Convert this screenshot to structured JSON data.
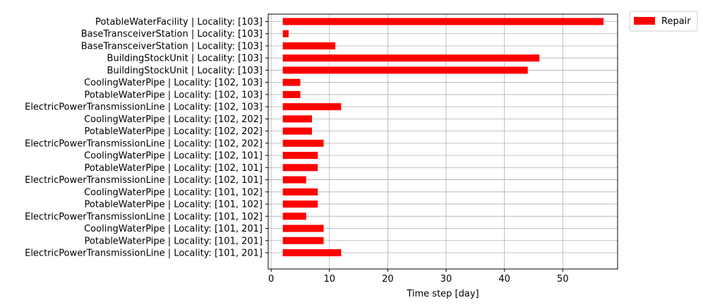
{
  "chart_data": {
    "type": "bar",
    "orientation": "horizontal-gantt",
    "xlabel": "Time step [day]",
    "ylabel": "",
    "xlim": [
      -0.5,
      59.4
    ],
    "xticks": [
      0,
      10,
      20,
      30,
      40,
      50
    ],
    "grid": true,
    "legend_position": "top-right-outside",
    "series": [
      {
        "name": "Repair",
        "color": "#ff0000",
        "bars": [
          {
            "label": "ElectricPowerTransmissionLine | Locality: [101, 201]",
            "start": 2,
            "end": 12
          },
          {
            "label": "PotableWaterPipe | Locality: [101, 201]",
            "start": 2,
            "end": 9
          },
          {
            "label": "CoolingWaterPipe | Locality: [101, 201]",
            "start": 2,
            "end": 9
          },
          {
            "label": "ElectricPowerTransmissionLine | Locality: [101, 102]",
            "start": 2,
            "end": 6
          },
          {
            "label": "PotableWaterPipe | Locality: [101, 102]",
            "start": 2,
            "end": 8
          },
          {
            "label": "CoolingWaterPipe | Locality: [101, 102]",
            "start": 2,
            "end": 8
          },
          {
            "label": "ElectricPowerTransmissionLine | Locality: [102, 101]",
            "start": 2,
            "end": 6
          },
          {
            "label": "PotableWaterPipe | Locality: [102, 101]",
            "start": 2,
            "end": 8
          },
          {
            "label": "CoolingWaterPipe | Locality: [102, 101]",
            "start": 2,
            "end": 8
          },
          {
            "label": "ElectricPowerTransmissionLine | Locality: [102, 202]",
            "start": 2,
            "end": 9
          },
          {
            "label": "PotableWaterPipe | Locality: [102, 202]",
            "start": 2,
            "end": 7
          },
          {
            "label": "CoolingWaterPipe | Locality: [102, 202]",
            "start": 2,
            "end": 7
          },
          {
            "label": "ElectricPowerTransmissionLine | Locality: [102, 103]",
            "start": 2,
            "end": 12
          },
          {
            "label": "PotableWaterPipe | Locality: [102, 103]",
            "start": 2,
            "end": 5
          },
          {
            "label": "CoolingWaterPipe | Locality: [102, 103]",
            "start": 2,
            "end": 5
          },
          {
            "label": "BuildingStockUnit | Locality: [103]",
            "start": 2,
            "end": 44
          },
          {
            "label": "BuildingStockUnit | Locality: [103]",
            "start": 2,
            "end": 46
          },
          {
            "label": "BaseTransceiverStation | Locality: [103]",
            "start": 2,
            "end": 11
          },
          {
            "label": "BaseTransceiverStation | Locality: [103]",
            "start": 2,
            "end": 3
          },
          {
            "label": "PotableWaterFacility | Locality: [103]",
            "start": 2,
            "end": 57
          }
        ]
      }
    ]
  }
}
